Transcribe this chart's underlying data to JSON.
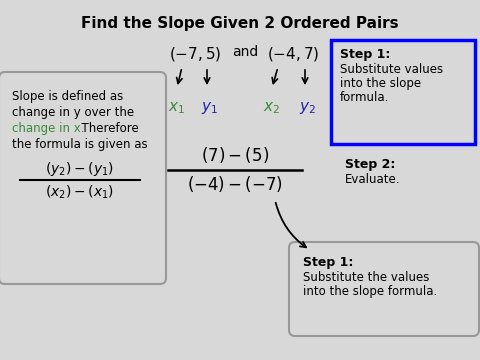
{
  "title": "Find the Slope Given 2 Ordered Pairs",
  "bg_color": "#d8d8d8",
  "title_color": "#000000",
  "title_fontsize": 11,
  "green_color": "#3a8a3a",
  "blue_color": "#2020aa",
  "left_box_line1": "Slope is defined as",
  "left_box_line2": "change in y over the",
  "left_box_line3a": "change in x.",
  "left_box_line3b": "  Therefore",
  "left_box_line4": "the formula is given as"
}
